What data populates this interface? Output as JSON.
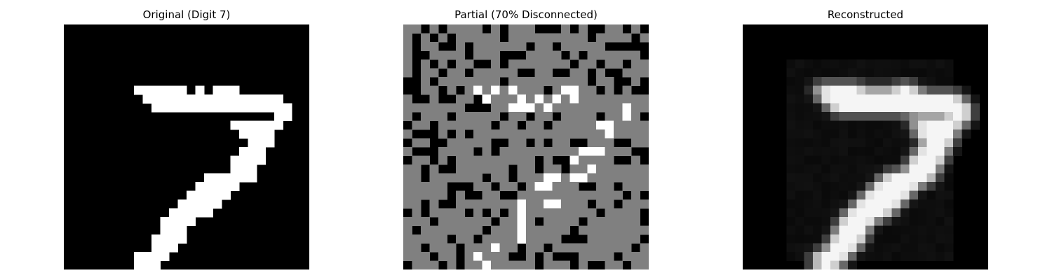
{
  "figure": {
    "panels": [
      {
        "id": "original",
        "title": "Original (Digit 7)",
        "grid_size": 28,
        "colormap": "grayscale",
        "description": "Binarized 28x28 image of handwritten digit 7; white stroke on black background"
      },
      {
        "id": "partial",
        "title": "Partial (70% Disconnected)",
        "grid_size": 28,
        "colormap": "grayscale",
        "disconnected_fraction": 0.7,
        "legend": {
          "white": "visible on pixel",
          "black": "visible off pixel",
          "gray": "disconnected (unknown) pixel"
        }
      },
      {
        "id": "reconstructed",
        "title": "Reconstructed",
        "grid_size": 28,
        "colormap": "grayscale",
        "description": "Blurry continuous-valued reconstruction of digit 7"
      }
    ]
  },
  "colors": {
    "background": "#ffffff",
    "on": "#ffffff",
    "off": "#000000",
    "disconnected": "#808080"
  }
}
